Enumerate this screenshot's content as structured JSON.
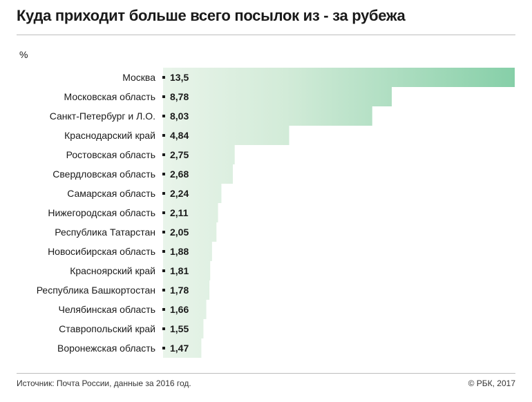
{
  "title": "Куда приходит больше всего посылок из - за рубежа",
  "unit": "%",
  "source": "Источник: Почта России, данные за 2016 год.",
  "copyright": "© РБК, 2017",
  "colors": {
    "bar_light": "#dcefe0",
    "bar_dark": "#86cfa8",
    "text": "#1a1a1a",
    "rule": "#bdbdbd"
  },
  "chart_data": {
    "type": "bar",
    "orientation": "horizontal",
    "title": "Куда приходит больше всего посылок из - за рубежа",
    "ylabel": "%",
    "categories": [
      "Москва",
      "Московская область",
      "Санкт-Петербург и Л.О.",
      "Краснодарский край",
      "Ростовская область",
      "Свердловская область",
      "Самарская область",
      "Нижегородская область",
      "Республика Татарстан",
      "Новосибирская область",
      "Красноярский край",
      "Республика Башкортостан",
      "Челябинская область",
      "Ставропольский край",
      "Воронежская область"
    ],
    "values": [
      13.5,
      8.78,
      8.03,
      4.84,
      2.75,
      2.68,
      2.24,
      2.11,
      2.05,
      1.88,
      1.81,
      1.78,
      1.66,
      1.55,
      1.47
    ],
    "value_labels": [
      "13,5",
      "8,78",
      "8,03",
      "4,84",
      "2,75",
      "2,68",
      "2,24",
      "2,11",
      "2,05",
      "1,88",
      "1,81",
      "1,78",
      "1,66",
      "1,55",
      "1,47"
    ],
    "xlim": [
      0,
      13.5
    ],
    "grid": false,
    "legend": "none"
  }
}
